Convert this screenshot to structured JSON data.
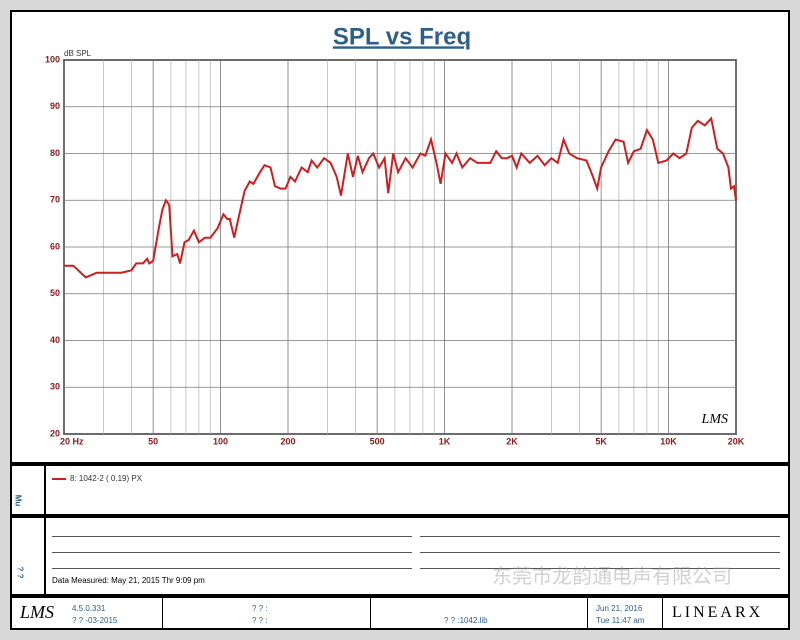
{
  "chart_data": {
    "type": "line",
    "title": "SPL vs Freq",
    "ylabel": "dB SPL",
    "log_x": true,
    "grid": true,
    "xlim": [
      20,
      20000
    ],
    "ylim": [
      20,
      100
    ],
    "yticks": [
      20,
      30,
      40,
      50,
      60,
      70,
      80,
      90,
      100
    ],
    "xticks": [
      {
        "value": 20,
        "label": "20  Hz"
      },
      50,
      100,
      200,
      500,
      {
        "value": 1000,
        "label": "1K"
      },
      {
        "value": 2000,
        "label": "2K"
      },
      {
        "value": 5000,
        "label": "5K"
      },
      {
        "value": 10000,
        "label": "10K"
      },
      {
        "value": 20000,
        "label": "20K"
      }
    ],
    "xminorticks": [
      30,
      40,
      60,
      70,
      80,
      90,
      300,
      400,
      600,
      700,
      800,
      900,
      3000,
      4000,
      6000,
      7000,
      8000,
      9000
    ],
    "x": [
      20,
      22,
      25,
      28,
      32,
      36,
      40,
      42,
      45,
      47,
      48,
      50,
      53,
      55,
      57,
      59,
      61,
      64,
      66,
      69,
      72,
      76,
      80,
      85,
      90,
      97,
      103,
      107,
      110,
      115,
      120,
      128,
      135,
      140,
      150,
      157,
      167,
      175,
      185,
      195,
      205,
      215,
      230,
      245,
      255,
      270,
      290,
      310,
      330,
      345,
      370,
      390,
      410,
      430,
      460,
      480,
      510,
      540,
      560,
      590,
      620,
      670,
      720,
      780,
      820,
      870,
      920,
      960,
      1010,
      1080,
      1130,
      1200,
      1300,
      1400,
      1500,
      1600,
      1700,
      1800,
      1900,
      2000,
      2100,
      2200,
      2400,
      2600,
      2800,
      3000,
      3200,
      3400,
      3600,
      3900,
      4300,
      4600,
      4800,
      5000,
      5400,
      5800,
      6300,
      6600,
      7000,
      7500,
      8000,
      8500,
      9000,
      9800,
      10500,
      11200,
      12000,
      12700,
      13500,
      14500,
      15500,
      16500,
      17500,
      18500,
      19000,
      19600,
      20000
    ],
    "series": [
      {
        "name": "8: 1042-2 ( 0.19)   PX",
        "color": "#cc1f1f",
        "values": [
          56,
          56,
          53.5,
          54.5,
          54.5,
          54.5,
          55,
          56.5,
          56.5,
          57.5,
          56.5,
          57,
          64,
          68,
          70,
          69,
          58,
          58.5,
          56.5,
          61,
          61.5,
          63.5,
          61,
          62,
          62,
          64,
          67,
          66,
          66,
          62,
          66,
          72,
          74,
          73.5,
          76,
          77.5,
          77,
          73,
          72.5,
          72.5,
          75,
          74,
          77,
          76,
          78.5,
          77,
          79,
          78,
          75,
          71,
          80,
          75,
          79.5,
          76,
          79,
          80,
          77,
          79,
          71.5,
          80,
          76,
          79,
          77,
          80,
          79.5,
          83,
          78,
          73.5,
          80,
          78,
          80,
          77,
          79,
          78,
          78,
          78,
          80.5,
          79,
          79,
          79.5,
          77,
          80,
          78,
          79.5,
          77.5,
          79,
          78,
          83,
          80,
          79,
          78.5,
          75,
          72.5,
          77,
          80.5,
          83,
          82.5,
          78,
          80.5,
          81,
          85,
          83,
          78,
          78.5,
          80,
          79,
          80,
          85.5,
          87,
          86,
          87.5,
          81,
          80,
          77,
          72.5,
          73,
          70
        ]
      }
    ],
    "logo": "LMS"
  },
  "panels": {
    "mu_label": "Mu",
    "notes_label": "? ?",
    "measured": "Data Measured: May 21, 2015 Thr 9:09 pm"
  },
  "footer": {
    "logo": "LMS",
    "version": "4.5.0.331",
    "date_built": "? ? -03-2015",
    "field1": "? ? :",
    "field2": "? ? :",
    "library": "? ? :1042.lib",
    "date": "Jun 21, 2016",
    "time": "Tue 11:47 am",
    "brand": "LINEARX"
  },
  "watermark": "东莞市龙韵通电声有限公司"
}
